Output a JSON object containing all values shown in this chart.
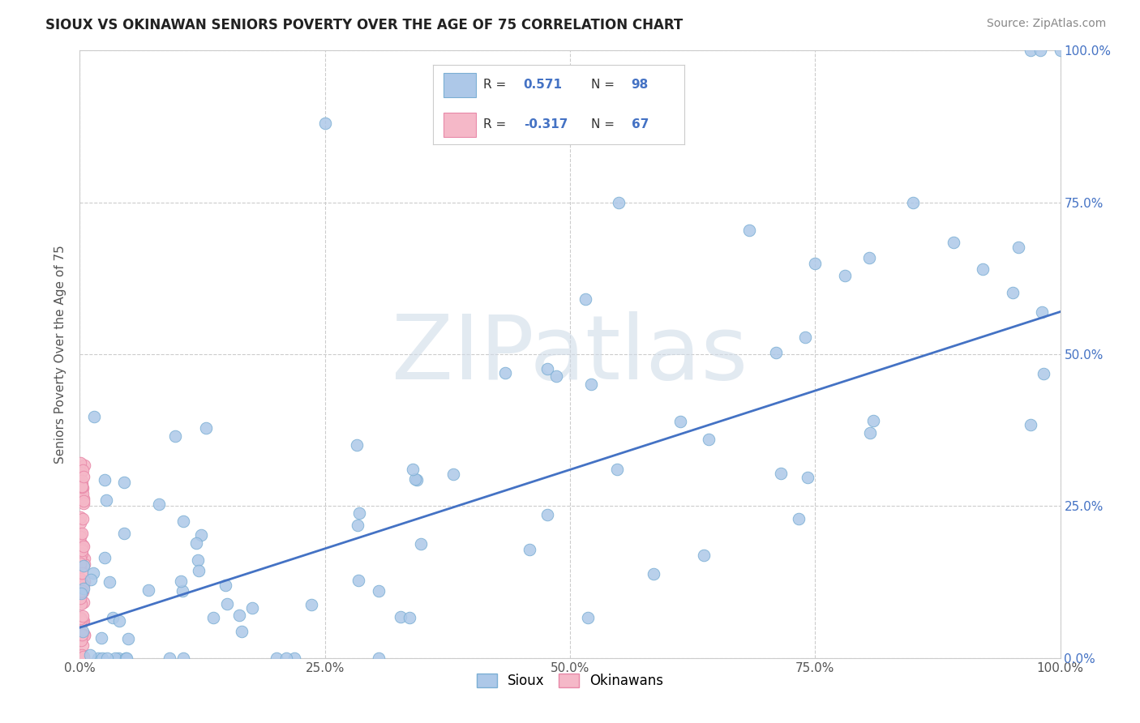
{
  "title": "SIOUX VS OKINAWAN SENIORS POVERTY OVER THE AGE OF 75 CORRELATION CHART",
  "source": "Source: ZipAtlas.com",
  "ylabel": "Seniors Poverty Over the Age of 75",
  "watermark": "ZIPatlas",
  "sioux_R": 0.571,
  "sioux_N": 98,
  "okinawan_R": -0.317,
  "okinawan_N": 67,
  "sioux_color": "#adc8e8",
  "sioux_edge": "#7bafd4",
  "okinawan_color": "#f5b8c8",
  "okinawan_edge": "#e888a8",
  "regression_color": "#4472c4",
  "background_color": "#ffffff",
  "grid_color": "#cccccc",
  "title_color": "#222222",
  "legend_value_color": "#4472c4",
  "watermark_color": "#d0dce8",
  "xlim": [
    0.0,
    1.0
  ],
  "ylim": [
    0.0,
    1.0
  ],
  "xticks": [
    0.0,
    0.25,
    0.5,
    0.75,
    1.0
  ],
  "yticks": [
    0.0,
    0.25,
    0.5,
    0.75,
    1.0
  ],
  "xticklabels": [
    "0.0%",
    "25.0%",
    "50.0%",
    "75.0%",
    "100.0%"
  ],
  "right_yticklabels": [
    "0.0%",
    "25.0%",
    "50.0%",
    "75.0%",
    "100.0%"
  ],
  "regression_x0": 0.0,
  "regression_y0": 0.05,
  "regression_x1": 1.0,
  "regression_y1": 0.57
}
